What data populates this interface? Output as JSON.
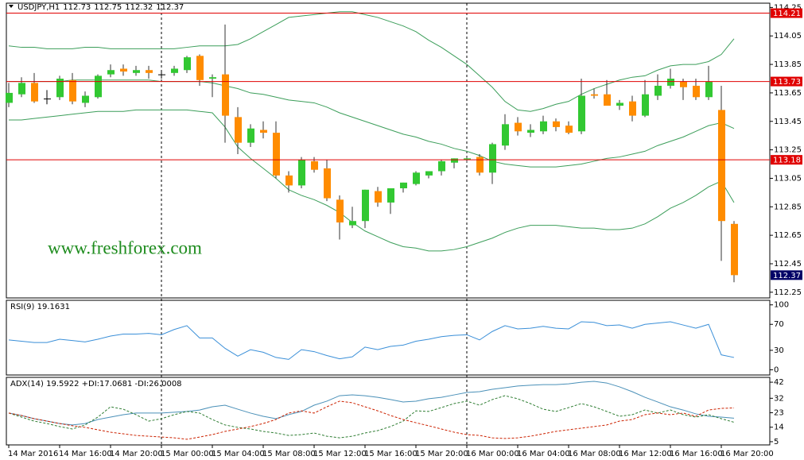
{
  "chart_data": [
    {
      "type": "candlestick",
      "title": "USDJPY,H1",
      "categories": [
        "14 Mar 2016",
        null,
        null,
        null,
        "14 Mar 16:00",
        null,
        null,
        null,
        "14 Mar 20:00",
        null,
        null,
        null,
        "15 Mar 00:00",
        null,
        null,
        null,
        "15 Mar 04:00",
        null,
        null,
        null,
        "15 Mar 08:00",
        null,
        null,
        null,
        "15 Mar 12:00",
        null,
        null,
        null,
        "15 Mar 16:00",
        null,
        null,
        null,
        "15 Mar 20:00",
        null,
        null,
        null,
        "16 Mar 00:00",
        null,
        null,
        null,
        "16 Mar 04:00",
        null,
        null,
        null,
        "16 Mar 08:00",
        null,
        null,
        null,
        "16 Mar 12:00",
        null,
        null,
        null,
        "16 Mar 16:00",
        null,
        null,
        null,
        "16 Mar 20:00",
        null
      ],
      "open": [
        113.58,
        113.64,
        113.72,
        113.61,
        113.62,
        113.74,
        113.58,
        113.62,
        113.78,
        113.82,
        113.79,
        113.81,
        113.78,
        113.79,
        113.81,
        113.91,
        113.75,
        113.78,
        113.48,
        113.3,
        113.39,
        113.37,
        113.07,
        113.0,
        113.17,
        113.12,
        112.9,
        112.72,
        112.75,
        112.96,
        112.88,
        112.98,
        113.01,
        113.07,
        113.1,
        113.16,
        113.18,
        113.2,
        113.09,
        113.28,
        113.44,
        113.37,
        113.38,
        113.45,
        113.42,
        113.38,
        113.64,
        113.64,
        113.56,
        113.59,
        113.49,
        113.63,
        113.7,
        113.73,
        113.7,
        113.62,
        113.53,
        112.73
      ],
      "high": [
        113.72,
        113.76,
        113.79,
        113.67,
        113.77,
        113.79,
        113.66,
        113.78,
        113.85,
        113.85,
        113.84,
        113.84,
        113.8,
        113.84,
        113.91,
        113.92,
        113.78,
        114.13,
        113.55,
        113.43,
        113.45,
        113.45,
        113.1,
        113.2,
        113.2,
        113.18,
        112.93,
        112.85,
        112.97,
        112.99,
        112.98,
        113.02,
        113.1,
        113.1,
        113.18,
        113.19,
        113.2,
        113.22,
        113.3,
        113.5,
        113.48,
        113.43,
        113.49,
        113.47,
        113.45,
        113.75,
        113.68,
        113.74,
        113.6,
        113.63,
        113.74,
        113.78,
        113.82,
        113.75,
        113.75,
        113.84,
        113.7,
        112.75
      ],
      "low": [
        113.55,
        113.62,
        113.58,
        113.57,
        113.6,
        113.57,
        113.55,
        113.61,
        113.76,
        113.77,
        113.77,
        113.75,
        113.75,
        113.77,
        113.79,
        113.7,
        113.62,
        113.3,
        113.22,
        113.27,
        113.33,
        113.05,
        112.95,
        112.98,
        113.09,
        112.89,
        112.62,
        112.7,
        112.7,
        112.85,
        112.8,
        112.95,
        113.0,
        113.05,
        113.07,
        113.12,
        113.16,
        113.07,
        113.01,
        113.25,
        113.35,
        113.34,
        113.36,
        113.38,
        113.36,
        113.36,
        113.61,
        113.56,
        113.53,
        113.45,
        113.48,
        113.6,
        113.68,
        113.6,
        113.6,
        113.6,
        112.47,
        112.32
      ],
      "close": [
        113.65,
        113.72,
        113.59,
        113.61,
        113.75,
        113.59,
        113.63,
        113.77,
        113.81,
        113.8,
        113.81,
        113.79,
        113.78,
        113.82,
        113.9,
        113.74,
        113.76,
        113.49,
        113.3,
        113.4,
        113.37,
        113.07,
        113.0,
        113.18,
        113.11,
        112.91,
        112.74,
        112.75,
        112.97,
        112.88,
        112.98,
        113.02,
        113.09,
        113.1,
        113.17,
        113.19,
        113.19,
        113.09,
        113.29,
        113.43,
        113.38,
        113.39,
        113.45,
        113.41,
        113.37,
        113.63,
        113.63,
        113.56,
        113.58,
        113.49,
        113.64,
        113.7,
        113.75,
        113.69,
        113.62,
        113.73,
        112.75,
        112.37
      ],
      "up_color": "#32c832",
      "down_color": "#ff8c00",
      "doji_color": "#000000",
      "overlays": [
        {
          "color": "#3c9e5a",
          "values": [
            113.98,
            113.97,
            113.97,
            113.96,
            113.96,
            113.96,
            113.97,
            113.97,
            113.96,
            113.96,
            113.96,
            113.96,
            113.96,
            113.96,
            113.97,
            113.98,
            113.98,
            113.98,
            113.99,
            114.03,
            114.08,
            114.13,
            114.18,
            114.19,
            114.2,
            114.21,
            114.22,
            114.22,
            114.2,
            114.18,
            114.15,
            114.12,
            114.08,
            114.02,
            113.97,
            113.91,
            113.85,
            113.77,
            113.69,
            113.59,
            113.53,
            113.52,
            113.54,
            113.57,
            113.59,
            113.64,
            113.68,
            113.71,
            113.74,
            113.76,
            113.77,
            113.81,
            113.84,
            113.85,
            113.85,
            113.87,
            113.92,
            114.03
          ]
        },
        {
          "color": "#3c9e5a",
          "values": [
            113.73,
            113.73,
            113.73,
            113.73,
            113.73,
            113.74,
            113.74,
            113.74,
            113.74,
            113.74,
            113.74,
            113.74,
            113.73,
            113.73,
            113.73,
            113.73,
            113.72,
            113.7,
            113.68,
            113.65,
            113.64,
            113.62,
            113.6,
            113.59,
            113.58,
            113.55,
            113.51,
            113.48,
            113.45,
            113.42,
            113.39,
            113.36,
            113.34,
            113.31,
            113.29,
            113.26,
            113.24,
            113.21,
            113.17,
            113.15,
            113.14,
            113.13,
            113.13,
            113.13,
            113.14,
            113.15,
            113.17,
            113.19,
            113.2,
            113.22,
            113.24,
            113.28,
            113.31,
            113.34,
            113.38,
            113.42,
            113.44,
            113.4
          ]
        },
        {
          "color": "#3c9e5a",
          "values": [
            113.46,
            113.46,
            113.47,
            113.48,
            113.49,
            113.5,
            113.51,
            113.52,
            113.52,
            113.52,
            113.53,
            113.53,
            113.53,
            113.53,
            113.53,
            113.52,
            113.51,
            113.41,
            113.27,
            113.19,
            113.12,
            113.05,
            112.97,
            112.93,
            112.9,
            112.86,
            112.81,
            112.74,
            112.68,
            112.64,
            112.6,
            112.57,
            112.56,
            112.54,
            112.54,
            112.55,
            112.57,
            112.6,
            112.63,
            112.67,
            112.7,
            112.72,
            112.72,
            112.72,
            112.71,
            112.7,
            112.7,
            112.69,
            112.69,
            112.7,
            112.73,
            112.78,
            112.84,
            112.88,
            112.93,
            112.99,
            113.03,
            112.88
          ]
        }
      ],
      "levels": [
        {
          "value": 114.21,
          "color": "#e00000"
        },
        {
          "value": 113.73,
          "color": "#e00000"
        },
        {
          "value": 113.18,
          "color": "#e00000"
        }
      ],
      "price_label_color": "#000066",
      "watermark": "www.freshforex.com",
      "ylim": [
        112.21,
        114.28
      ],
      "yticks": [
        114.25,
        114.05,
        113.85,
        113.65,
        113.45,
        113.25,
        113.05,
        112.85,
        112.65,
        112.45,
        112.25
      ]
    },
    {
      "type": "line",
      "title": "RSI(9) 19.1631",
      "series": [
        {
          "color": "#3a8fd8",
          "values": [
            46,
            44,
            42,
            42,
            47,
            45,
            43,
            47,
            52,
            55,
            55,
            56,
            54,
            62,
            68,
            49,
            49,
            33,
            21,
            31,
            27,
            19,
            16,
            31,
            28,
            22,
            17,
            20,
            35,
            31,
            36,
            38,
            44,
            47,
            51,
            53,
            54,
            46,
            59,
            68,
            63,
            64,
            67,
            64,
            63,
            74,
            73,
            68,
            69,
            64,
            70,
            72,
            74,
            69,
            64,
            70,
            23,
            19
          ]
        }
      ],
      "ylim": [
        -8,
        107
      ],
      "yticks": [
        100,
        70,
        30,
        0
      ]
    },
    {
      "type": "line",
      "title": "ADX(14) 19.5922 +DI:17.0681 -DI:26.0008",
      "series": [
        {
          "color": "#4a90b8",
          "dash": false,
          "values": [
            22.8,
            21.3,
            19.3,
            17.8,
            16.3,
            15.4,
            16.3,
            18.8,
            20.3,
            21.8,
            22.8,
            22.8,
            22.8,
            23.3,
            23.8,
            24.7,
            26.7,
            27.7,
            25.2,
            22.8,
            20.8,
            19.3,
            21.8,
            23.8,
            27.7,
            30.2,
            33.6,
            34.1,
            33.6,
            32.6,
            31.2,
            29.7,
            30.2,
            31.7,
            32.6,
            34.1,
            35.6,
            36.1,
            37.6,
            38.6,
            39.6,
            40.1,
            40.5,
            40.5,
            41.0,
            42.0,
            42.5,
            41.5,
            39.1,
            36.1,
            32.6,
            29.7,
            26.7,
            24.7,
            22.3,
            20.8,
            20.3,
            19.6
          ]
        },
        {
          "color": "#2e7d32",
          "dash": true,
          "values": [
            22.8,
            20.3,
            17.8,
            16.3,
            14.4,
            12.9,
            15.4,
            20.3,
            26.7,
            25.2,
            21.8,
            17.8,
            19.3,
            21.8,
            23.8,
            22.8,
            18.8,
            15.4,
            13.9,
            12.9,
            11.4,
            10.4,
            8.9,
            9.4,
            10.4,
            8.4,
            7.4,
            8.4,
            10.4,
            11.9,
            14.4,
            17.8,
            24.2,
            23.8,
            26.2,
            28.7,
            30.2,
            27.7,
            31.2,
            33.6,
            31.7,
            28.7,
            25.2,
            23.8,
            26.2,
            28.7,
            26.7,
            23.8,
            20.8,
            21.8,
            24.7,
            22.8,
            24.7,
            21.8,
            20.3,
            21.8,
            19.3,
            17.1
          ]
        },
        {
          "color": "#cc2200",
          "dash": true,
          "values": [
            22.8,
            21.3,
            19.3,
            17.8,
            16.3,
            14.9,
            13.9,
            12.4,
            10.9,
            9.9,
            8.9,
            8.4,
            7.9,
            7.4,
            6.5,
            7.9,
            9.4,
            11.4,
            12.9,
            14.4,
            16.3,
            18.8,
            22.8,
            24.2,
            22.8,
            26.7,
            30.2,
            29.2,
            26.7,
            24.2,
            21.3,
            18.8,
            16.8,
            14.9,
            12.9,
            10.9,
            9.4,
            8.9,
            7.4,
            7.0,
            7.4,
            8.4,
            9.9,
            11.4,
            12.4,
            13.4,
            14.4,
            15.4,
            17.8,
            18.8,
            21.8,
            22.8,
            21.8,
            22.8,
            20.8,
            24.7,
            25.7,
            26.0
          ]
        }
      ],
      "ylim": [
        3,
        45
      ],
      "yticks": [
        42,
        32,
        23,
        14,
        5
      ]
    }
  ]
}
